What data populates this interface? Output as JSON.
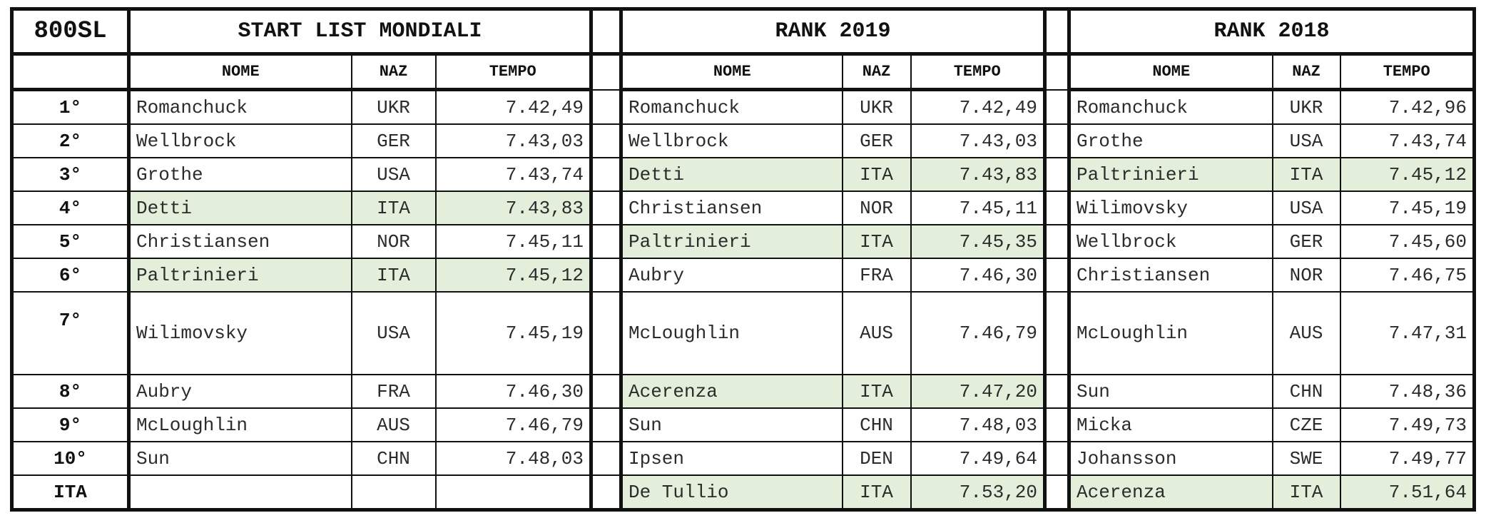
{
  "event_code": "800SL",
  "sections": [
    {
      "title": "START LIST MONDIALI"
    },
    {
      "title": "RANK 2019"
    },
    {
      "title": "RANK 2018"
    }
  ],
  "columns": {
    "name": "NOME",
    "nat": "NAZ",
    "time": "TEMPO"
  },
  "highlight_color": "#e3eedb",
  "rows": [
    {
      "pos": "1°",
      "start": {
        "name": "Romanchuck",
        "nat": "UKR",
        "time": "7.42,49",
        "hl": false
      },
      "r2019": {
        "name": "Romanchuck",
        "nat": "UKR",
        "time": "7.42,49",
        "hl": false
      },
      "r2018": {
        "name": "Romanchuck",
        "nat": "UKR",
        "time": "7.42,96",
        "hl": false
      }
    },
    {
      "pos": "2°",
      "start": {
        "name": "Wellbrock",
        "nat": "GER",
        "time": "7.43,03",
        "hl": false
      },
      "r2019": {
        "name": "Wellbrock",
        "nat": "GER",
        "time": "7.43,03",
        "hl": false
      },
      "r2018": {
        "name": "Grothe",
        "nat": "USA",
        "time": "7.43,74",
        "hl": false
      }
    },
    {
      "pos": "3°",
      "start": {
        "name": "Grothe",
        "nat": "USA",
        "time": "7.43,74",
        "hl": false
      },
      "r2019": {
        "name": "Detti",
        "nat": "ITA",
        "time": "7.43,83",
        "hl": true
      },
      "r2018": {
        "name": "Paltrinieri",
        "nat": "ITA",
        "time": "7.45,12",
        "hl": true
      }
    },
    {
      "pos": "4°",
      "start": {
        "name": "Detti",
        "nat": "ITA",
        "time": "7.43,83",
        "hl": true
      },
      "r2019": {
        "name": "Christiansen",
        "nat": "NOR",
        "time": "7.45,11",
        "hl": false
      },
      "r2018": {
        "name": "Wilimovsky",
        "nat": "USA",
        "time": "7.45,19",
        "hl": false
      }
    },
    {
      "pos": "5°",
      "start": {
        "name": "Christiansen",
        "nat": "NOR",
        "time": "7.45,11",
        "hl": false
      },
      "r2019": {
        "name": "Paltrinieri",
        "nat": "ITA",
        "time": "7.45,35",
        "hl": true
      },
      "r2018": {
        "name": "Wellbrock",
        "nat": "GER",
        "time": "7.45,60",
        "hl": false
      }
    },
    {
      "pos": "6°",
      "start": {
        "name": "Paltrinieri",
        "nat": "ITA",
        "time": "7.45,12",
        "hl": true
      },
      "r2019": {
        "name": "Aubry",
        "nat": "FRA",
        "time": "7.46,30",
        "hl": false
      },
      "r2018": {
        "name": "Christiansen",
        "nat": "NOR",
        "time": "7.46,75",
        "hl": false
      }
    },
    {
      "pos": "7°",
      "start": {
        "name": "Wilimovsky",
        "nat": "USA",
        "time": "7.45,19",
        "hl": false
      },
      "r2019": {
        "name": "McLoughlin",
        "nat": "AUS",
        "time": "7.46,79",
        "hl": false
      },
      "r2018": {
        "name": "McLoughlin",
        "nat": "AUS",
        "time": "7.47,31",
        "hl": false
      }
    },
    {
      "pos": "8°",
      "start": {
        "name": "Aubry",
        "nat": "FRA",
        "time": "7.46,30",
        "hl": false
      },
      "r2019": {
        "name": "Acerenza",
        "nat": "ITA",
        "time": "7.47,20",
        "hl": true
      },
      "r2018": {
        "name": "Sun",
        "nat": "CHN",
        "time": "7.48,36",
        "hl": false
      }
    },
    {
      "pos": "9°",
      "start": {
        "name": "McLoughlin",
        "nat": "AUS",
        "time": "7.46,79",
        "hl": false
      },
      "r2019": {
        "name": "Sun",
        "nat": "CHN",
        "time": "7.48,03",
        "hl": false
      },
      "r2018": {
        "name": "Micka",
        "nat": "CZE",
        "time": "7.49,73",
        "hl": false
      }
    },
    {
      "pos": "10°",
      "start": {
        "name": "Sun",
        "nat": "CHN",
        "time": "7.48,03",
        "hl": false
      },
      "r2019": {
        "name": "Ipsen",
        "nat": "DEN",
        "time": "7.49,64",
        "hl": false
      },
      "r2018": {
        "name": "Johansson",
        "nat": "SWE",
        "time": "7.49,77",
        "hl": false
      }
    },
    {
      "pos": "ITA",
      "start": {
        "name": "",
        "nat": "",
        "time": "",
        "hl": false
      },
      "r2019": {
        "name": "De Tullio",
        "nat": "ITA",
        "time": "7.53,20",
        "hl": true
      },
      "r2018": {
        "name": "Acerenza",
        "nat": "ITA",
        "time": "7.51,64",
        "hl": true
      }
    }
  ]
}
